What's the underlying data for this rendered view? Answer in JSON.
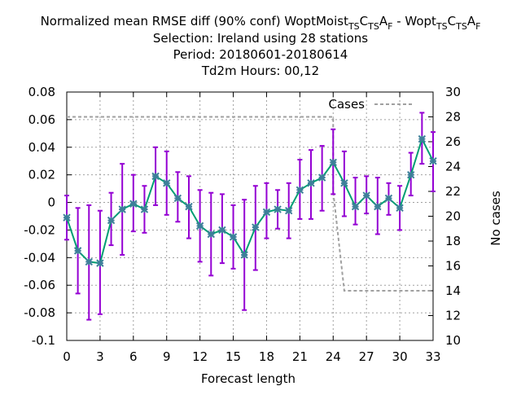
{
  "chart_data": {
    "type": "line",
    "title_lines": [
      {
        "parts": [
          {
            "t": "Normalized mean RMSE diff (90% conf) WoptMoist"
          },
          {
            "t": "TS",
            "sub": true
          },
          {
            "t": "C"
          },
          {
            "t": "TS",
            "sub": true
          },
          {
            "t": "A"
          },
          {
            "t": "F",
            "sub": true
          },
          {
            "t": " - Wopt"
          },
          {
            "t": "TS",
            "sub": true
          },
          {
            "t": "C"
          },
          {
            "t": "TS",
            "sub": true
          },
          {
            "t": "A"
          },
          {
            "t": "F",
            "sub": true
          }
        ]
      },
      {
        "parts": [
          {
            "t": "Selection: Ireland using    28 stations"
          }
        ]
      },
      {
        "parts": [
          {
            "t": "Period: 20180601-20180614"
          }
        ]
      },
      {
        "parts": [
          {
            "t": "Td2m   Hours:  00,12"
          }
        ]
      }
    ],
    "xlabel": "Forecast length",
    "ylabel_right": "No cases",
    "legend_label": "Cases",
    "xlim": [
      0,
      33
    ],
    "ylim": [
      -0.1,
      0.08
    ],
    "y2lim": [
      10,
      30
    ],
    "xticks": [
      0,
      3,
      6,
      9,
      12,
      15,
      18,
      21,
      24,
      27,
      30,
      33
    ],
    "xtick_labels": [
      "0",
      "3",
      "6",
      "9",
      "12",
      "15",
      "18",
      "21",
      "24",
      "27",
      "30",
      "33"
    ],
    "yticks": [
      -0.1,
      -0.08,
      -0.06,
      -0.04,
      -0.02,
      0,
      0.02,
      0.04,
      0.06,
      0.08
    ],
    "ytick_labels": [
      "-0.1",
      "-0.08",
      "-0.06",
      "-0.04",
      "-0.02",
      "0",
      "0.02",
      "0.04",
      "0.06",
      "0.08"
    ],
    "y2ticks": [
      10,
      12,
      14,
      16,
      18,
      20,
      22,
      24,
      26,
      28,
      30
    ],
    "y2tick_labels": [
      "10",
      "12",
      "14",
      "16",
      "18",
      "20",
      "22",
      "24",
      "26",
      "28",
      "30"
    ],
    "grid": true,
    "x": [
      0,
      1,
      2,
      3,
      4,
      5,
      6,
      7,
      8,
      9,
      10,
      11,
      12,
      13,
      14,
      15,
      16,
      17,
      18,
      19,
      20,
      21,
      22,
      23,
      24,
      25,
      26,
      27,
      28,
      29,
      30,
      31,
      32,
      33
    ],
    "mean": [
      -0.011,
      -0.035,
      -0.043,
      -0.044,
      -0.013,
      -0.005,
      -0.001,
      -0.005,
      0.019,
      0.014,
      0.003,
      -0.003,
      -0.017,
      -0.023,
      -0.02,
      -0.025,
      -0.038,
      -0.018,
      -0.007,
      -0.005,
      -0.006,
      0.009,
      0.014,
      0.018,
      0.029,
      0.014,
      -0.003,
      0.005,
      -0.003,
      0.003,
      -0.004,
      0.02,
      0.046,
      0.03
    ],
    "upper": [
      0.005,
      -0.004,
      -0.002,
      -0.006,
      0.007,
      0.028,
      0.02,
      0.012,
      0.04,
      0.037,
      0.022,
      0.019,
      0.009,
      0.007,
      0.006,
      -0.002,
      0.002,
      0.012,
      0.014,
      0.009,
      0.014,
      0.031,
      0.038,
      0.041,
      0.053,
      0.037,
      0.018,
      0.019,
      0.018,
      0.014,
      0.012,
      0.036,
      0.065,
      0.051
    ],
    "lower": [
      -0.027,
      -0.066,
      -0.085,
      -0.081,
      -0.031,
      -0.038,
      -0.021,
      -0.022,
      -0.002,
      -0.009,
      -0.014,
      -0.026,
      -0.043,
      -0.053,
      -0.044,
      -0.048,
      -0.078,
      -0.049,
      -0.026,
      -0.019,
      -0.026,
      -0.012,
      -0.012,
      -0.006,
      0.006,
      -0.01,
      -0.016,
      -0.008,
      -0.023,
      -0.009,
      -0.02,
      0.005,
      0.028,
      0.008
    ],
    "cases_steps": [
      [
        0,
        28
      ],
      [
        24,
        28
      ],
      [
        24,
        22
      ],
      [
        24.5,
        18
      ],
      [
        25,
        14
      ],
      [
        33,
        14
      ]
    ],
    "colors": {
      "errorbar": "#9400d3",
      "line": "#009e73",
      "marker": "#3d7f99",
      "cases": "#a0a0a0",
      "grid": "#a0a0a0"
    }
  }
}
